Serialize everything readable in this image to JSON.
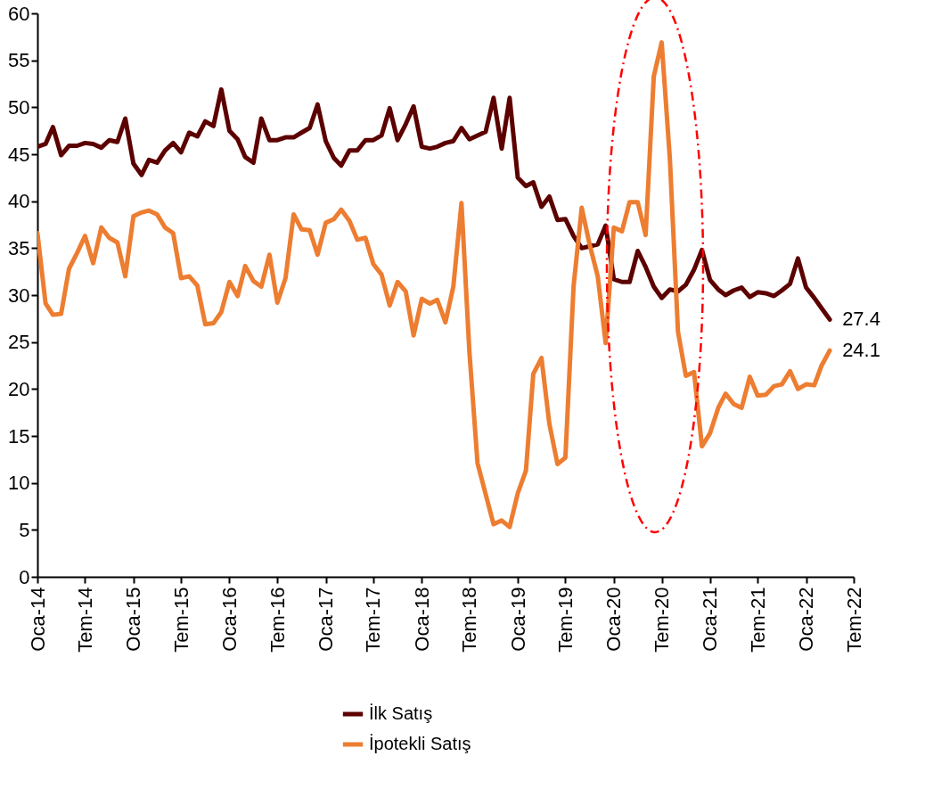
{
  "chart_data": {
    "type": "line",
    "x": [
      "2014-01",
      "2014-02",
      "2014-03",
      "2014-04",
      "2014-05",
      "2014-06",
      "2014-07",
      "2014-08",
      "2014-09",
      "2014-10",
      "2014-11",
      "2014-12",
      "2015-01",
      "2015-02",
      "2015-03",
      "2015-04",
      "2015-05",
      "2015-06",
      "2015-07",
      "2015-08",
      "2015-09",
      "2015-10",
      "2015-11",
      "2015-12",
      "2016-01",
      "2016-02",
      "2016-03",
      "2016-04",
      "2016-05",
      "2016-06",
      "2016-07",
      "2016-08",
      "2016-09",
      "2016-10",
      "2016-11",
      "2016-12",
      "2017-01",
      "2017-02",
      "2017-03",
      "2017-04",
      "2017-05",
      "2017-06",
      "2017-07",
      "2017-08",
      "2017-09",
      "2017-10",
      "2017-11",
      "2017-12",
      "2018-01",
      "2018-02",
      "2018-03",
      "2018-04",
      "2018-05",
      "2018-06",
      "2018-07",
      "2018-08",
      "2018-09",
      "2018-10",
      "2018-11",
      "2018-12",
      "2019-01",
      "2019-02",
      "2019-03",
      "2019-04",
      "2019-05",
      "2019-06",
      "2019-07",
      "2019-08",
      "2019-09",
      "2019-10",
      "2019-11",
      "2019-12",
      "2020-01",
      "2020-02",
      "2020-03",
      "2020-04",
      "2020-05",
      "2020-06",
      "2020-07",
      "2020-08",
      "2020-09",
      "2020-10",
      "2020-11",
      "2020-12",
      "2021-01",
      "2021-02",
      "2021-03",
      "2021-04",
      "2021-05",
      "2021-06",
      "2021-07",
      "2021-08",
      "2021-09",
      "2021-10",
      "2021-11",
      "2021-12",
      "2022-01",
      "2022-02",
      "2022-03",
      "2022-04"
    ],
    "series": [
      {
        "name": "İlk Satış",
        "color": "#5c0000",
        "values": [
          45.8,
          46.1,
          47.9,
          44.9,
          45.9,
          45.9,
          46.2,
          46.1,
          45.7,
          46.5,
          46.3,
          48.8,
          44.0,
          42.8,
          44.4,
          44.1,
          45.4,
          46.2,
          45.2,
          47.3,
          46.9,
          48.5,
          48.0,
          51.9,
          47.5,
          46.6,
          44.7,
          44.1,
          48.8,
          46.5,
          46.5,
          46.8,
          46.8,
          47.3,
          47.8,
          50.3,
          46.4,
          44.6,
          43.8,
          45.4,
          45.4,
          46.5,
          46.5,
          47.0,
          49.9,
          46.5,
          48.2,
          50.1,
          45.8,
          45.6,
          45.8,
          46.2,
          46.4,
          47.8,
          46.6,
          47.0,
          47.4,
          51.0,
          45.6,
          51.0,
          42.5,
          41.6,
          42.0,
          39.4,
          40.5,
          38.0,
          38.1,
          36.3,
          35.0,
          35.2,
          35.4,
          37.4,
          31.7,
          31.4,
          31.4,
          34.7,
          33.0,
          30.9,
          29.7,
          30.6,
          30.4,
          31.1,
          32.7,
          34.8,
          31.6,
          30.6,
          30.0,
          30.5,
          30.8,
          29.8,
          30.3,
          30.2,
          29.9,
          30.5,
          31.2,
          33.9,
          30.8,
          29.7,
          28.6,
          27.4
        ]
      },
      {
        "name": "İpotekli Satış",
        "color": "#ed7d31",
        "values": [
          36.6,
          29.1,
          27.9,
          28.0,
          32.8,
          34.5,
          36.3,
          33.4,
          37.2,
          36.1,
          35.6,
          32.0,
          38.4,
          38.8,
          39.0,
          38.6,
          37.2,
          36.6,
          31.8,
          32.0,
          31.0,
          26.9,
          27.0,
          28.2,
          31.4,
          29.9,
          33.1,
          31.5,
          30.9,
          34.3,
          29.2,
          31.8,
          38.6,
          37.0,
          36.9,
          34.3,
          37.7,
          38.1,
          39.1,
          37.9,
          35.9,
          36.1,
          33.3,
          32.2,
          28.9,
          31.4,
          30.4,
          25.7,
          29.6,
          29.1,
          29.5,
          27.1,
          30.9,
          39.8,
          24.0,
          12.1,
          8.8,
          5.6,
          6.0,
          5.3,
          8.9,
          11.3,
          21.6,
          23.3,
          16.3,
          12.0,
          12.7,
          30.9,
          39.3,
          35.4,
          32.0,
          24.9,
          37.2,
          36.8,
          39.9,
          39.9,
          36.4,
          53.3,
          56.9,
          44.6,
          26.1,
          21.4,
          21.8,
          13.9,
          15.3,
          18.0,
          19.5,
          18.4,
          18.0,
          21.3,
          19.3,
          19.4,
          20.3,
          20.5,
          21.9,
          20.0,
          20.5,
          20.4,
          22.5,
          24.1
        ]
      }
    ],
    "annotations": [
      {
        "text": "27.4",
        "x": "2022-04",
        "y": 27.4
      },
      {
        "text": "24.1",
        "x": "2022-04",
        "y": 24.1
      }
    ],
    "xlim": [
      "2014-01",
      "2022-07"
    ],
    "xticks": [
      {
        "value": "2014-01",
        "label": "Oca-14"
      },
      {
        "value": "2014-07",
        "label": "Tem-14"
      },
      {
        "value": "2015-01",
        "label": "Oca-15"
      },
      {
        "value": "2015-07",
        "label": "Tem-15"
      },
      {
        "value": "2016-01",
        "label": "Oca-16"
      },
      {
        "value": "2016-07",
        "label": "Tem-16"
      },
      {
        "value": "2017-01",
        "label": "Oca-17"
      },
      {
        "value": "2017-07",
        "label": "Tem-17"
      },
      {
        "value": "2018-01",
        "label": "Oca-18"
      },
      {
        "value": "2018-07",
        "label": "Tem-18"
      },
      {
        "value": "2019-01",
        "label": "Oca-19"
      },
      {
        "value": "2019-07",
        "label": "Tem-19"
      },
      {
        "value": "2020-01",
        "label": "Oca-20"
      },
      {
        "value": "2020-07",
        "label": "Tem-20"
      },
      {
        "value": "2021-01",
        "label": "Oca-21"
      },
      {
        "value": "2021-07",
        "label": "Tem-21"
      },
      {
        "value": "2022-01",
        "label": "Oca-22"
      },
      {
        "value": "2022-07",
        "label": "Tem-22"
      }
    ],
    "ylim": [
      0,
      60
    ],
    "yticks": [
      0,
      5,
      10,
      15,
      20,
      25,
      30,
      35,
      40,
      45,
      50,
      55,
      60
    ],
    "grid": false,
    "legend": "bottom",
    "line_style": "solid"
  }
}
